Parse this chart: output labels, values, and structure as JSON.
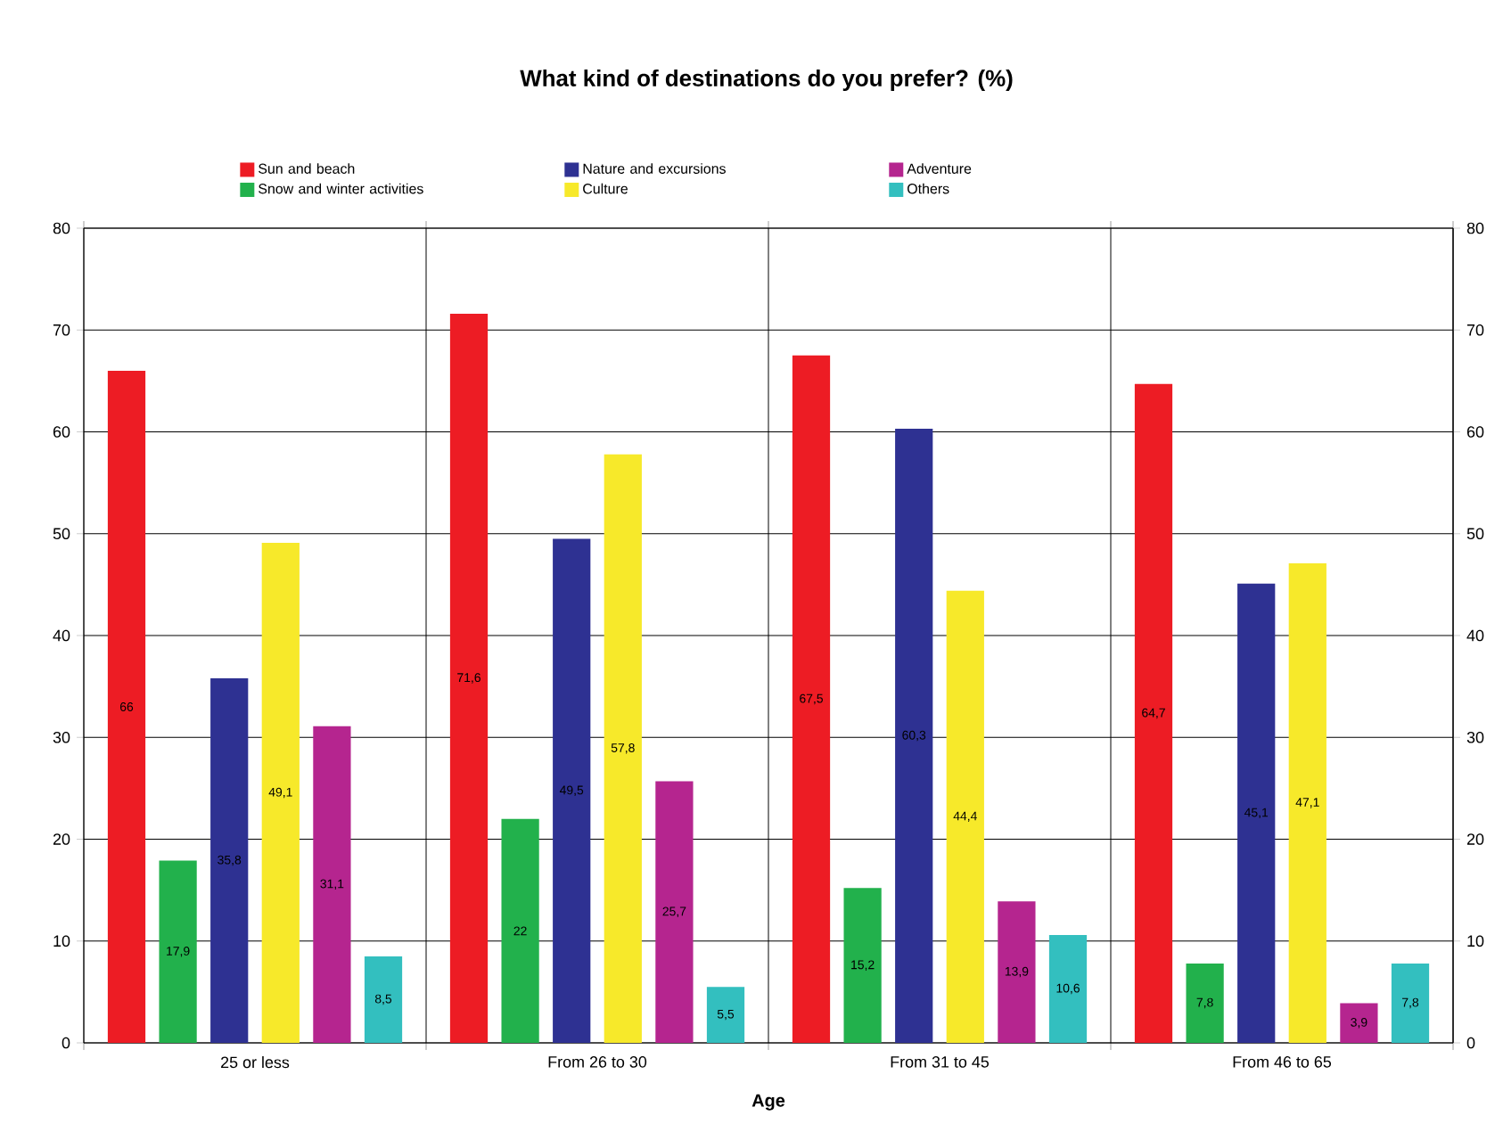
{
  "chart_data": {
    "type": "bar",
    "title": "What kind of destinations do you prefer? (%)",
    "xlabel": "Age",
    "categories": [
      "25 or less",
      "From 26 to 30",
      "From 31 to 45",
      "From 46 to 65"
    ],
    "series": [
      {
        "name": "Sun and beach",
        "color": "#ed1c24",
        "values": [
          66,
          71.6,
          67.5,
          64.7
        ],
        "value_labels": [
          "66",
          "71,6",
          "67,5",
          "64,7"
        ]
      },
      {
        "name": "Snow and winter activities",
        "color": "#22b14c",
        "values": [
          17.9,
          22,
          15.2,
          7.8
        ],
        "value_labels": [
          "17,9",
          "22",
          "15,2",
          "7,8"
        ]
      },
      {
        "name": "Nature and excursions",
        "color": "#2e3192",
        "values": [
          35.8,
          49.5,
          60.3,
          45.1
        ],
        "value_labels": [
          "35,8",
          "49,5",
          "60,3",
          "45,1"
        ]
      },
      {
        "name": "Culture",
        "color": "#f7e92a",
        "values": [
          49.1,
          57.8,
          44.4,
          47.1
        ],
        "value_labels": [
          "49,1",
          "57,8",
          "44,4",
          "47,1"
        ]
      },
      {
        "name": "Adventure",
        "color": "#b5258f",
        "values": [
          31.1,
          25.7,
          13.9,
          3.9
        ],
        "value_labels": [
          "31,1",
          "25,7",
          "13,9",
          "3,9"
        ]
      },
      {
        "name": "Others",
        "color": "#33bfbf",
        "values": [
          8.5,
          5.5,
          10.6,
          7.8
        ],
        "value_labels": [
          "8,5",
          "5,5",
          "10,6",
          "7,8"
        ]
      }
    ],
    "ylim": [
      0,
      80
    ],
    "yticks": [
      0,
      10,
      20,
      30,
      40,
      50,
      60,
      70,
      80
    ],
    "y2lim": [
      0,
      80
    ],
    "y2ticks": [
      0,
      10,
      20,
      30,
      40,
      50,
      60,
      70,
      80
    ],
    "grid": true,
    "legend": "top"
  }
}
